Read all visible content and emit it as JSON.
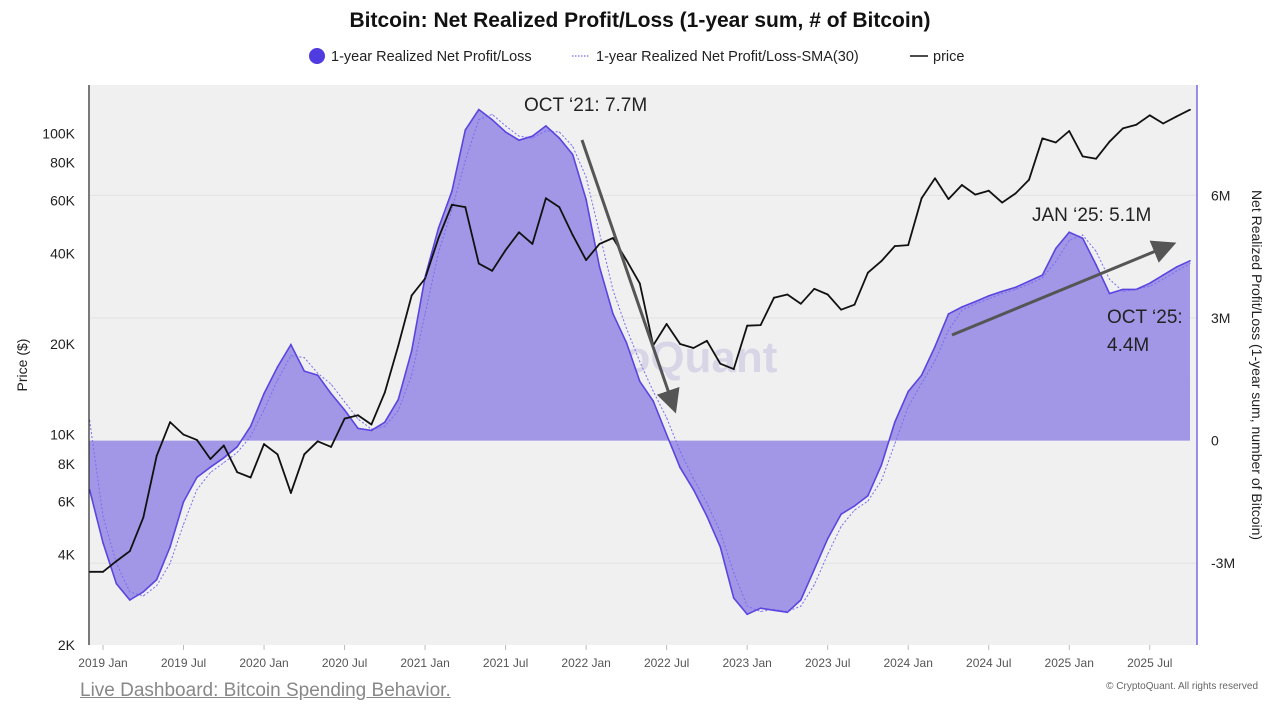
{
  "chart_data": {
    "type": "area",
    "title": "Bitcoin: Net Realized Profit/Loss (1-year sum, # of Bitcoin)",
    "legend_position": "top",
    "legend": [
      {
        "label": "1-year Realized Net Profit/Loss",
        "marker": "filled-circle"
      },
      {
        "label": "1-year Realized Net Profit/Loss-SMA(30)",
        "marker": "dotted-line"
      },
      {
        "label": "price",
        "marker": "line"
      }
    ],
    "colors": {
      "nrpl_fill": "#a197e6",
      "nrpl_line": "#5a45e0",
      "sma": "#7b6cf0",
      "price": "#111111",
      "plot_bg": "#f0f0f0"
    },
    "ylabel_left": "Price ($)",
    "ylabel_right": "Net Realized Profit/Loss (1-year sum, number of Bitcoin)",
    "y_left_scale": "log",
    "y_left_range": [
      2000,
      145000
    ],
    "y_right_range": [
      -5000000,
      8700000
    ],
    "grid": true,
    "x_ticks": [
      {
        "date": "2019-01",
        "label": "2019 Jan"
      },
      {
        "date": "2019-07",
        "label": "2019 Jul"
      },
      {
        "date": "2020-01",
        "label": "2020 Jan"
      },
      {
        "date": "2020-07",
        "label": "2020 Jul"
      },
      {
        "date": "2021-01",
        "label": "2021 Jan"
      },
      {
        "date": "2021-07",
        "label": "2021 Jul"
      },
      {
        "date": "2022-01",
        "label": "2022 Jan"
      },
      {
        "date": "2022-07",
        "label": "2022 Jul"
      },
      {
        "date": "2023-01",
        "label": "2023 Jan"
      },
      {
        "date": "2023-07",
        "label": "2023 Jul"
      },
      {
        "date": "2024-01",
        "label": "2024 Jan"
      },
      {
        "date": "2024-07",
        "label": "2024 Jul"
      },
      {
        "date": "2025-01",
        "label": "2025 Jan"
      },
      {
        "date": "2025-07",
        "label": "2025 Jul"
      }
    ],
    "y_left_ticks": [
      {
        "value": 2000,
        "label": "2K"
      },
      {
        "value": 4000,
        "label": "4K"
      },
      {
        "value": 6000,
        "label": "6K"
      },
      {
        "value": 8000,
        "label": "8K"
      },
      {
        "value": 10000,
        "label": "10K"
      },
      {
        "value": 20000,
        "label": "20K"
      },
      {
        "value": 40000,
        "label": "40K"
      },
      {
        "value": 60000,
        "label": "60K"
      },
      {
        "value": 80000,
        "label": "80K"
      },
      {
        "value": 100000,
        "label": "100K"
      }
    ],
    "y_right_ticks": [
      {
        "value": -3000000,
        "label": "-3M"
      },
      {
        "value": 0,
        "label": "0"
      },
      {
        "value": 3000000,
        "label": "3M"
      },
      {
        "value": 6000000,
        "label": "6M"
      }
    ],
    "x": [
      "2018-12",
      "2019-01",
      "2019-02",
      "2019-03",
      "2019-04",
      "2019-05",
      "2019-06",
      "2019-07",
      "2019-08",
      "2019-09",
      "2019-10",
      "2019-11",
      "2019-12",
      "2020-01",
      "2020-02",
      "2020-03",
      "2020-04",
      "2020-05",
      "2020-06",
      "2020-07",
      "2020-08",
      "2020-09",
      "2020-10",
      "2020-11",
      "2020-12",
      "2021-01",
      "2021-02",
      "2021-03",
      "2021-04",
      "2021-05",
      "2021-06",
      "2021-07",
      "2021-08",
      "2021-09",
      "2021-10",
      "2021-11",
      "2021-12",
      "2022-01",
      "2022-02",
      "2022-03",
      "2022-04",
      "2022-05",
      "2022-06",
      "2022-07",
      "2022-08",
      "2022-09",
      "2022-10",
      "2022-11",
      "2022-12",
      "2023-01",
      "2023-02",
      "2023-03",
      "2023-04",
      "2023-05",
      "2023-06",
      "2023-07",
      "2023-08",
      "2023-09",
      "2023-10",
      "2023-11",
      "2023-12",
      "2024-01",
      "2024-02",
      "2024-03",
      "2024-04",
      "2024-05",
      "2024-06",
      "2024-07",
      "2024-08",
      "2024-09",
      "2024-10",
      "2024-11",
      "2024-12",
      "2025-01",
      "2025-02",
      "2025-03",
      "2025-04",
      "2025-05",
      "2025-06",
      "2025-07",
      "2025-08",
      "2025-09",
      "2025-10"
    ],
    "series": [
      {
        "name": "1-year Realized Net Profit/Loss",
        "axis": "right",
        "unit": "M BTC",
        "values": [
          -1.2,
          -2.5,
          -3.5,
          -3.9,
          -3.7,
          -3.4,
          -2.6,
          -1.5,
          -0.9,
          -0.65,
          -0.42,
          -0.15,
          0.35,
          1.15,
          1.8,
          2.35,
          1.7,
          1.6,
          1.15,
          0.75,
          0.3,
          0.25,
          0.45,
          1.0,
          2.2,
          4.0,
          5.2,
          6.1,
          7.6,
          8.1,
          7.85,
          7.55,
          7.35,
          7.45,
          7.7,
          7.4,
          7.0,
          5.9,
          4.25,
          3.1,
          2.4,
          1.45,
          0.97,
          0.15,
          -0.66,
          -1.2,
          -1.85,
          -2.6,
          -3.85,
          -4.25,
          -4.1,
          -4.15,
          -4.2,
          -3.9,
          -3.15,
          -2.4,
          -1.8,
          -1.6,
          -1.35,
          -0.6,
          0.45,
          1.2,
          1.6,
          2.3,
          3.1,
          3.27,
          3.4,
          3.54,
          3.65,
          3.75,
          3.9,
          4.05,
          4.7,
          5.1,
          4.95,
          4.3,
          3.6,
          3.7,
          3.7,
          3.85,
          4.05,
          4.25,
          4.4
        ]
      },
      {
        "name": "1-year Realized Net Profit/Loss-SMA(30)",
        "axis": "right",
        "unit": "M BTC",
        "values": [
          0.5,
          -1.85,
          -3.0,
          -3.7,
          -3.8,
          -3.55,
          -3.0,
          -2.05,
          -1.2,
          -0.78,
          -0.54,
          -0.29,
          0.1,
          0.75,
          1.48,
          2.08,
          2.03,
          1.65,
          1.38,
          0.95,
          0.53,
          0.28,
          0.35,
          0.73,
          1.6,
          3.1,
          4.6,
          5.65,
          6.85,
          7.85,
          7.98,
          7.7,
          7.45,
          7.4,
          7.58,
          7.55,
          7.2,
          6.45,
          5.08,
          3.68,
          2.75,
          1.93,
          1.21,
          0.56,
          -0.26,
          -0.93,
          -1.53,
          -2.23,
          -3.23,
          -4.05,
          -4.18,
          -4.13,
          -4.18,
          -4.05,
          -3.53,
          -2.78,
          -2.1,
          -1.7,
          -1.48,
          -0.98,
          -0.08,
          0.83,
          1.4,
          1.95,
          2.7,
          3.19,
          3.34,
          3.47,
          3.6,
          3.7,
          3.83,
          3.98,
          4.38,
          4.9,
          5.03,
          4.63,
          3.95,
          3.65,
          3.7,
          3.78,
          3.95,
          4.15,
          4.33
        ]
      },
      {
        "name": "price",
        "axis": "left",
        "unit": "USD",
        "values": [
          3500,
          3500,
          3800,
          4100,
          5300,
          8500,
          11000,
          10000,
          9600,
          8300,
          9200,
          7500,
          7200,
          9300,
          8600,
          6400,
          8600,
          9500,
          9100,
          11300,
          11600,
          10800,
          13800,
          19700,
          29000,
          33000,
          45000,
          58000,
          57000,
          37000,
          35000,
          41000,
          47000,
          43000,
          61000,
          57000,
          46000,
          38000,
          43000,
          45000,
          38000,
          31800,
          19800,
          23300,
          20000,
          19400,
          20500,
          17200,
          16500,
          23000,
          23100,
          28500,
          29200,
          27200,
          30500,
          29200,
          26000,
          27000,
          34500,
          37700,
          42300,
          42600,
          61000,
          71000,
          60600,
          67500,
          62700,
          64600,
          59000,
          63300,
          70200,
          96400,
          93400,
          102000,
          84000,
          82500,
          94000,
          104000,
          107000,
          115000,
          108000,
          114000,
          120000
        ]
      }
    ],
    "annotations": [
      {
        "text": "OCT ‘21: 7.7M"
      },
      {
        "text": "JAN ‘25: 5.1M"
      },
      {
        "text_line1": "OCT ‘25:",
        "text_line2": "4.4M"
      }
    ],
    "watermark": "CryptoQuant"
  },
  "footer": {
    "link": "Live Dashboard: Bitcoin Spending Behavior.",
    "copyright": "© CryptoQuant. All rights reserved"
  }
}
